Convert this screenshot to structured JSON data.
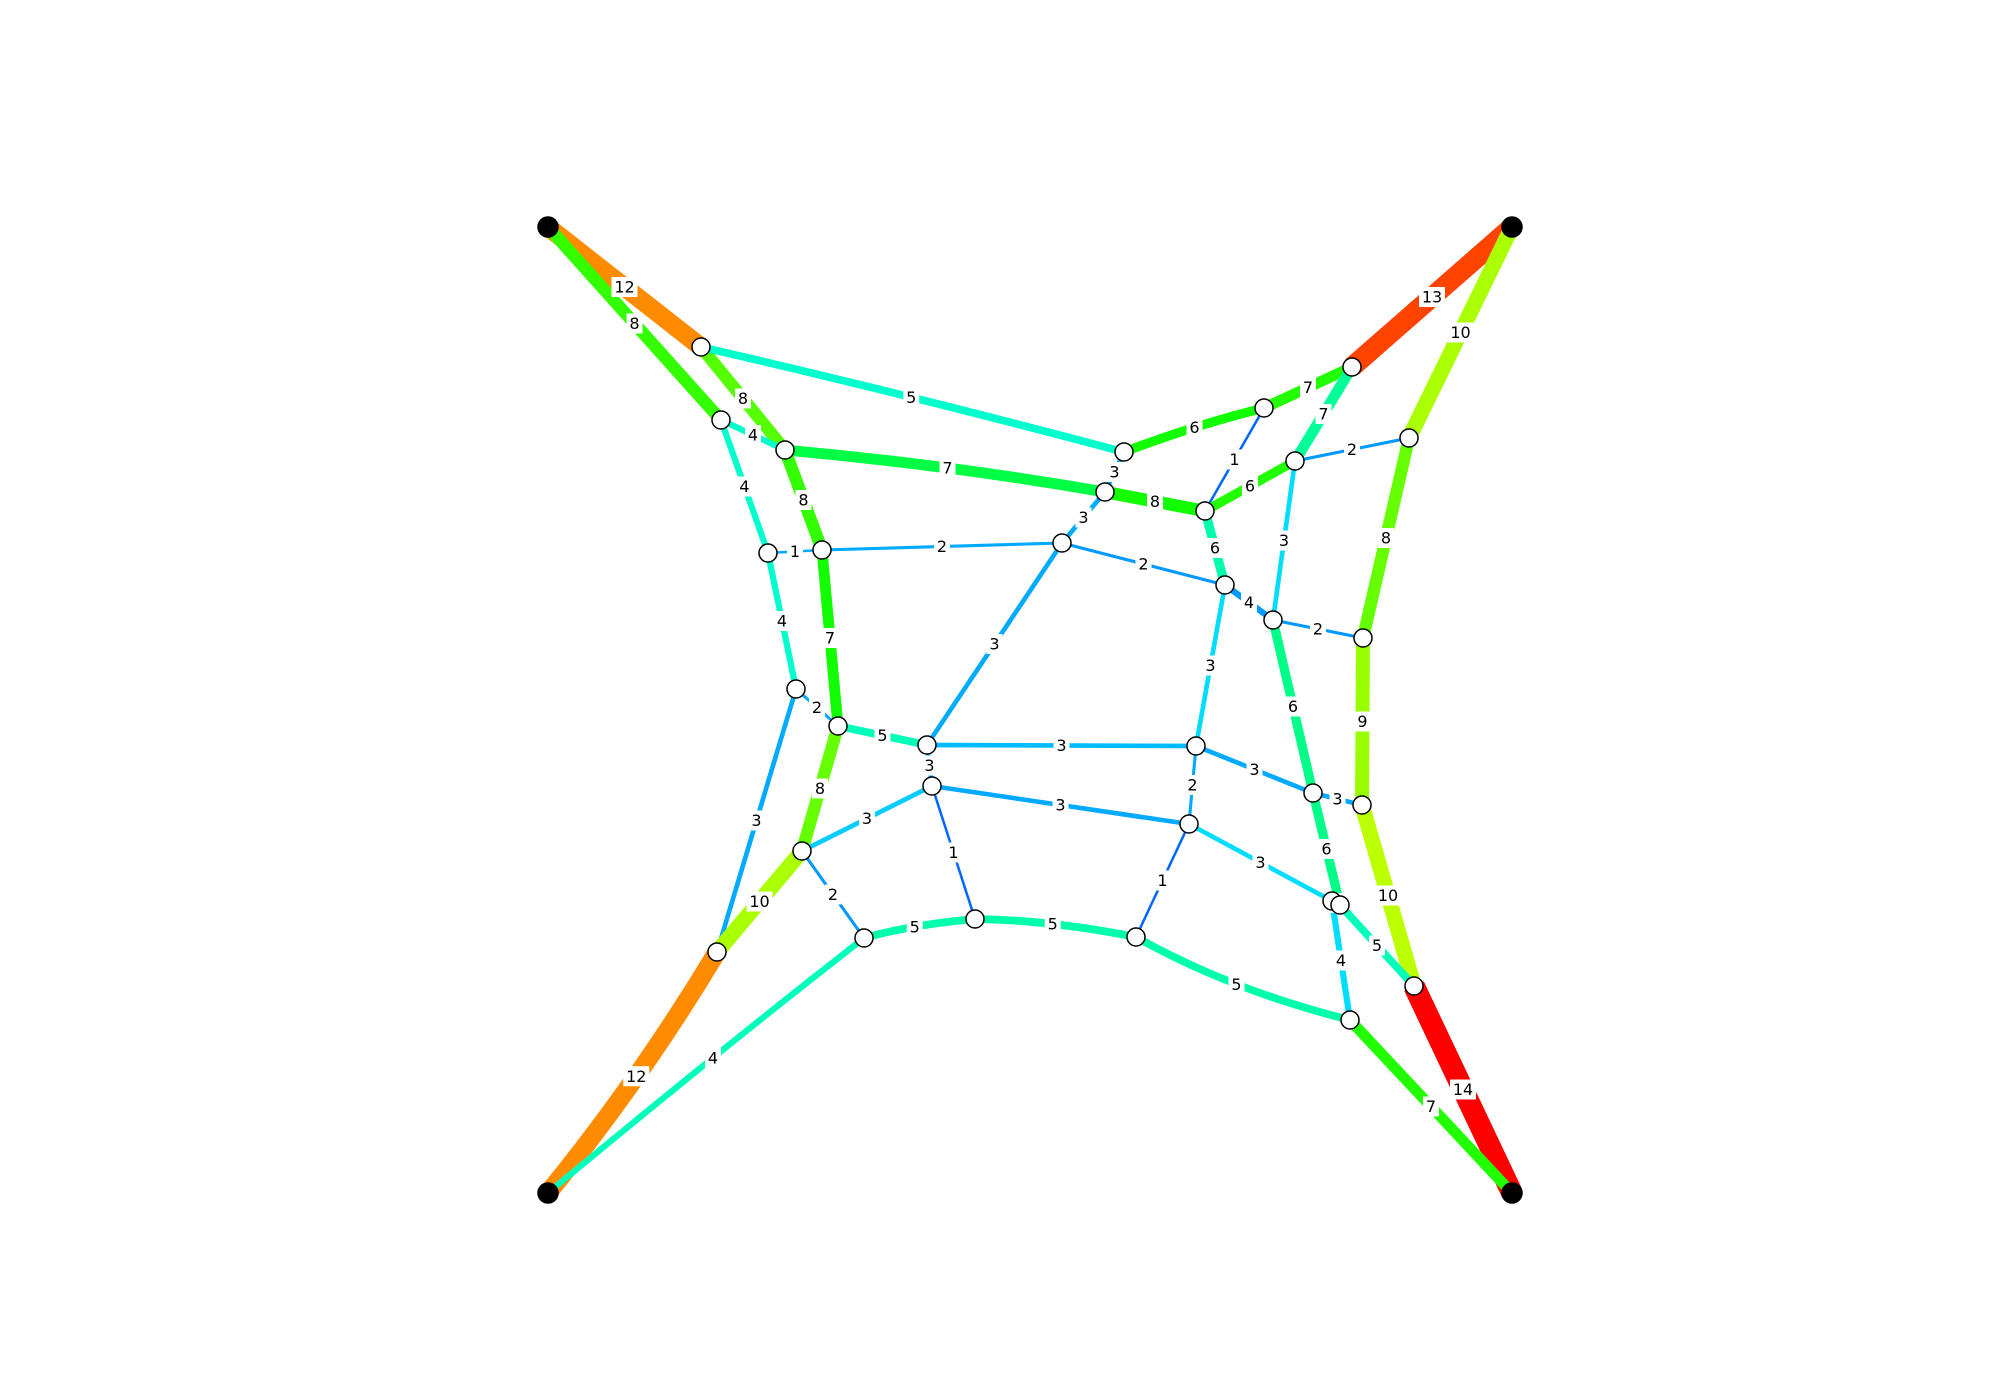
{
  "diagram": {
    "type": "force-network",
    "color_scale": "thickness-by-weight (blue = low, green = mid, red = high)",
    "nodes": [
      {
        "id": "TL",
        "fixed": true
      },
      {
        "id": "TR",
        "fixed": true
      },
      {
        "id": "BL",
        "fixed": true
      },
      {
        "id": "BR",
        "fixed": true
      },
      {
        "id": "n1"
      },
      {
        "id": "n2"
      },
      {
        "id": "n3"
      },
      {
        "id": "n4"
      },
      {
        "id": "n5"
      },
      {
        "id": "n6"
      },
      {
        "id": "n7"
      },
      {
        "id": "n8"
      },
      {
        "id": "n9"
      },
      {
        "id": "n10"
      },
      {
        "id": "n11"
      },
      {
        "id": "n12"
      },
      {
        "id": "n13"
      },
      {
        "id": "n14"
      },
      {
        "id": "n15"
      },
      {
        "id": "n16"
      },
      {
        "id": "n17"
      },
      {
        "id": "n18"
      },
      {
        "id": "n19"
      },
      {
        "id": "n20"
      },
      {
        "id": "n21"
      },
      {
        "id": "n22"
      },
      {
        "id": "n23"
      },
      {
        "id": "n24"
      },
      {
        "id": "n25"
      },
      {
        "id": "n26"
      },
      {
        "id": "n27"
      },
      {
        "id": "n28"
      },
      {
        "id": "n29"
      },
      {
        "id": "n30"
      },
      {
        "id": "n31"
      },
      {
        "id": "n32"
      },
      {
        "id": "n33"
      },
      {
        "id": "n34"
      },
      {
        "id": "n35"
      }
    ],
    "edges": [
      {
        "from": "TL",
        "to": "n1",
        "label": "12",
        "color": "#ff8c00"
      },
      {
        "from": "TL",
        "to": "n2",
        "label": "8",
        "color": "#33ff00"
      },
      {
        "from": "n1",
        "to": "n3",
        "label": "8",
        "color": "#55ff00"
      },
      {
        "from": "n1",
        "to": "n6",
        "label": "5",
        "color": "#00ffcc"
      },
      {
        "from": "n2",
        "to": "n3",
        "label": "4",
        "color": "#00ffcc"
      },
      {
        "from": "n2",
        "to": "n4",
        "label": "4",
        "color": "#00ffcc"
      },
      {
        "from": "n3",
        "to": "n5",
        "label": "8",
        "color": "#33ff00"
      },
      {
        "from": "n3",
        "to": "n8",
        "label": "7",
        "color": "#00ff44"
      },
      {
        "from": "n4",
        "to": "n5",
        "label": "1",
        "color": "#00aaff"
      },
      {
        "from": "n4",
        "to": "n9",
        "label": "4",
        "color": "#00ffcc"
      },
      {
        "from": "n5",
        "to": "n10",
        "label": "2",
        "color": "#00aaff"
      },
      {
        "from": "n5",
        "to": "n11",
        "label": "7",
        "color": "#11ff00"
      },
      {
        "from": "n6",
        "to": "n7",
        "label": "6",
        "color": "#11ff00"
      },
      {
        "from": "n6",
        "to": "n8",
        "label": "3",
        "color": "#00aaff"
      },
      {
        "from": "n7",
        "to": "TRa",
        "label": "7",
        "color": "#22ff00"
      },
      {
        "from": "n7",
        "to": "n12",
        "label": "1",
        "color": "#0066ff"
      },
      {
        "from": "TR",
        "to": "TRa",
        "label": "13",
        "color": "#ff4400"
      },
      {
        "from": "TR",
        "to": "n14",
        "label": "10",
        "color": "#aaff00"
      },
      {
        "from": "n8",
        "to": "n12",
        "label": "8",
        "color": "#11ff00"
      },
      {
        "from": "n8",
        "to": "n10",
        "label": "3",
        "color": "#00aaff"
      },
      {
        "from": "n12",
        "to": "n13",
        "label": "6",
        "color": "#22ff00"
      },
      {
        "from": "n12",
        "to": "n15",
        "label": "6",
        "color": "#00ffaa"
      },
      {
        "from": "TRa",
        "to": "n13",
        "label": "7",
        "color": "#00ff99"
      },
      {
        "from": "n13",
        "to": "n14",
        "label": "2",
        "color": "#0099ff"
      },
      {
        "from": "n13",
        "to": "n16",
        "label": "3",
        "color": "#00ddff"
      },
      {
        "from": "n10",
        "to": "n15",
        "label": "2",
        "color": "#0099ff"
      },
      {
        "from": "n10",
        "to": "n19",
        "label": "3",
        "color": "#00aaff"
      },
      {
        "from": "n15",
        "to": "n16",
        "label": "4",
        "color": "#0099ff"
      },
      {
        "from": "n15",
        "to": "n21",
        "label": "3",
        "color": "#00ddff"
      },
      {
        "from": "n16",
        "to": "n17",
        "label": "2",
        "color": "#0099ff"
      },
      {
        "from": "n16",
        "to": "n22",
        "label": "6",
        "color": "#00ff88"
      },
      {
        "from": "n14",
        "to": "n17",
        "label": "8",
        "color": "#66ff00"
      },
      {
        "from": "n17",
        "to": "n23",
        "label": "9",
        "color": "#99ff00"
      },
      {
        "from": "n9",
        "to": "n11",
        "label": "2",
        "color": "#00aaff"
      },
      {
        "from": "n9",
        "to": "n24",
        "label": "3",
        "color": "#00aaff"
      },
      {
        "from": "n11",
        "to": "n19",
        "label": "5",
        "color": "#00ffbb"
      },
      {
        "from": "n11",
        "to": "n25",
        "label": "8",
        "color": "#66ff00"
      },
      {
        "from": "n19",
        "to": "n21",
        "label": "3",
        "color": "#00bbff"
      },
      {
        "from": "n19",
        "to": "n20",
        "label": "3",
        "color": "#00aaff"
      },
      {
        "from": "n21",
        "to": "n22",
        "label": "3",
        "color": "#00aaff"
      },
      {
        "from": "n21",
        "to": "n27",
        "label": "2",
        "color": "#00aaff"
      },
      {
        "from": "n22",
        "to": "n23",
        "label": "3",
        "color": "#00aaff"
      },
      {
        "from": "n22",
        "to": "n29",
        "label": "6",
        "color": "#00ff88"
      },
      {
        "from": "n23",
        "to": "n30",
        "label": "10",
        "color": "#bbff00"
      },
      {
        "from": "n20",
        "to": "n25",
        "label": "3",
        "color": "#00ccff"
      },
      {
        "from": "n20",
        "to": "n27",
        "label": "3",
        "color": "#00aaff"
      },
      {
        "from": "n20",
        "to": "n31",
        "label": "1",
        "color": "#0066ff"
      },
      {
        "from": "n27",
        "to": "n28",
        "label": "3",
        "color": "#00ddff"
      },
      {
        "from": "n27",
        "to": "n33",
        "label": "1",
        "color": "#0066ff"
      },
      {
        "from": "n25",
        "to": "n24",
        "label": "10",
        "color": "#aaff00"
      },
      {
        "from": "n25",
        "to": "n26",
        "label": "2",
        "color": "#0099ff"
      },
      {
        "from": "n24",
        "to": "BL",
        "label": "12",
        "color": "#ff8c00"
      },
      {
        "from": "n26",
        "to": "n31",
        "label": "5",
        "color": "#00ffaa"
      },
      {
        "from": "n26",
        "to": "BL",
        "label": "4",
        "color": "#00ffbb"
      },
      {
        "from": "n31",
        "to": "n33",
        "label": "5",
        "color": "#00ffaa"
      },
      {
        "from": "n33",
        "to": "n34",
        "label": "5",
        "color": "#00ffaa"
      },
      {
        "from": "n28",
        "to": "n29",
        "label": "5",
        "color": "#00ffbb"
      },
      {
        "from": "n28",
        "to": "n34",
        "label": "4",
        "color": "#00ddff"
      },
      {
        "from": "n29",
        "to": "n30",
        "label": "5",
        "color": "#00ffbb"
      },
      {
        "from": "n30",
        "to": "BR",
        "label": "14",
        "color": "#ff0000"
      },
      {
        "from": "n34",
        "to": "BR",
        "label": "7",
        "color": "#22ff00"
      }
    ]
  }
}
